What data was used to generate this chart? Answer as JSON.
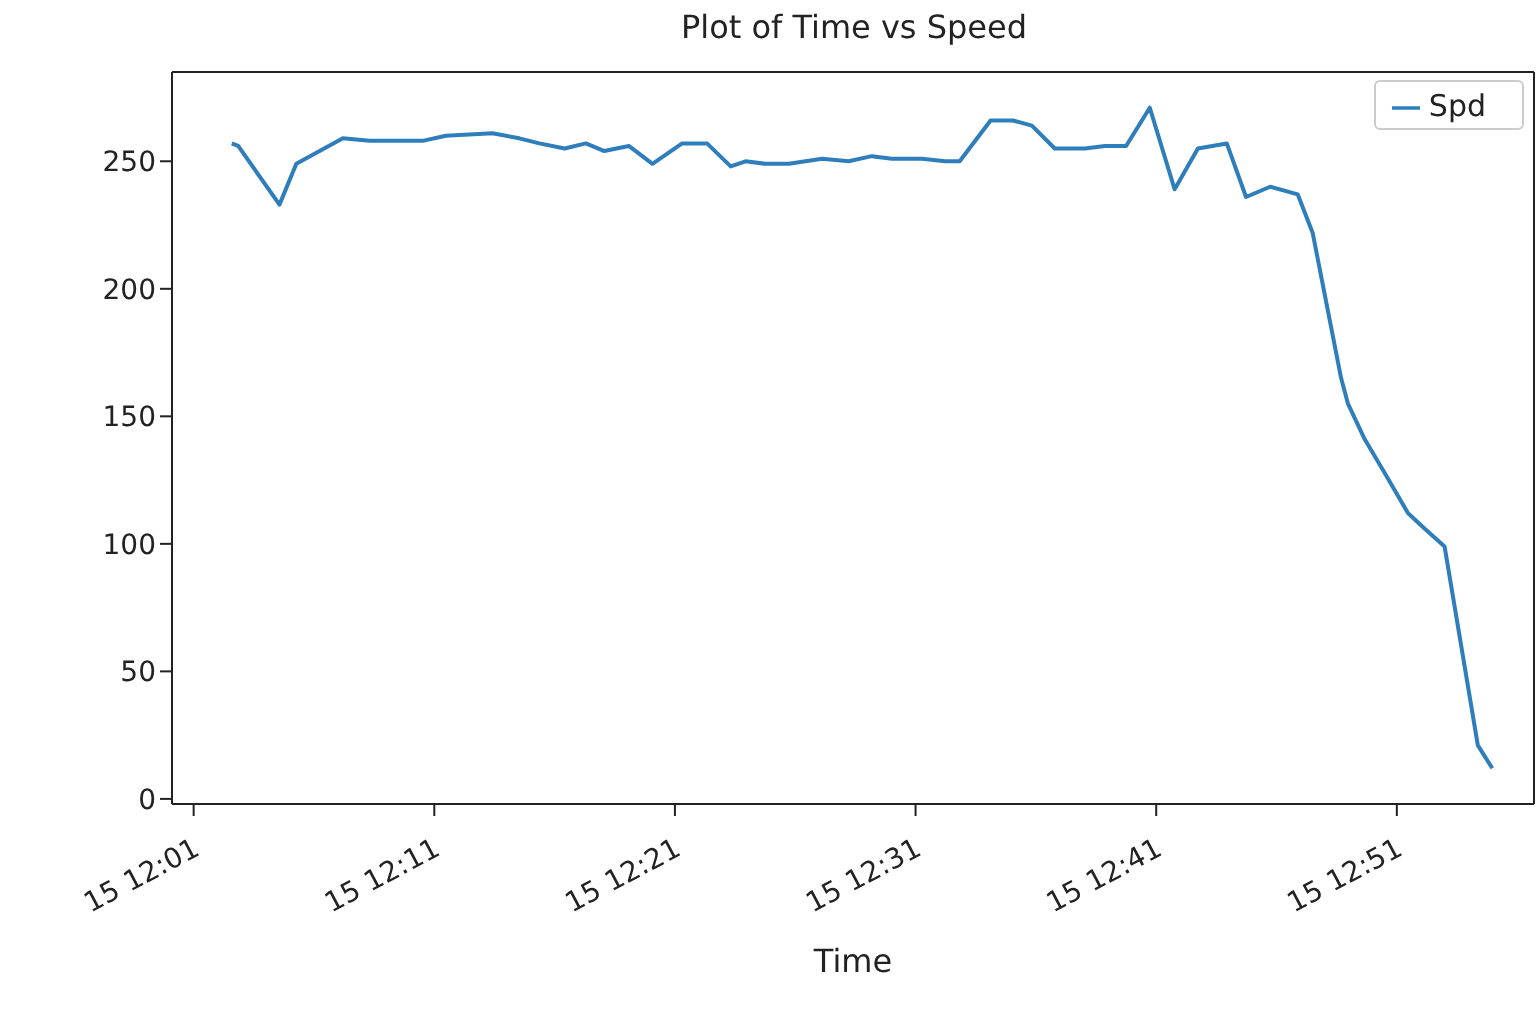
{
  "chart_data": {
    "type": "line",
    "title": "Plot of Time vs Speed",
    "xlabel": "Time",
    "x": [
      "--01-15T12:02:35",
      "--01-15T12:02:51",
      "--01-15T12:04:34",
      "--01-15T12:05:16",
      "--01-15T12:07:12",
      "--01-15T12:08:18",
      "--01-15T12:09:16",
      "--01-15T12:10:31",
      "--01-15T12:11:29",
      "--01-15T12:13:25",
      "--01-15T12:14:32",
      "--01-15T12:15:22",
      "--01-15T12:16:25",
      "--01-15T12:17:18",
      "--01-15T12:18:04",
      "--01-15T12:19:05",
      "--01-15T12:20:04",
      "--01-15T12:21:18",
      "--01-15T12:22:20",
      "--01-15T12:23:19",
      "--01-15T12:23:56",
      "--01-15T12:24:46",
      "--01-15T12:25:44",
      "--01-15T12:27:07",
      "--01-15T12:28:13",
      "--01-15T12:29:11",
      "--01-15T12:30:01",
      "--01-15T12:31:16",
      "--01-15T12:32:14",
      "--01-15T12:32:50",
      "--01-15T12:34:07",
      "--01-15T12:35:03",
      "--01-15T12:35:50",
      "--01-15T12:36:47",
      "--01-15T12:38:02",
      "--01-15T12:38:52",
      "--01-15T12:39:45",
      "--01-15T12:40:44",
      "--01-15T12:41:46",
      "--01-15T12:42:44",
      "--01-15T12:43:56",
      "--01-15T12:44:44",
      "--01-15T12:45:44",
      "--01-15T12:46:53",
      "--01-15T12:47:30",
      "--01-15T12:48:41",
      "--01-15T12:48:58",
      "--01-15T12:49:40",
      "--01-15T12:50:29",
      "--01-15T12:51:28",
      "--01-15T12:52:09",
      "--01-15T12:52:59",
      "--01-15T12:54:22",
      "--01-15T12:54:58"
    ],
    "series": [
      {
        "name": "Spd",
        "color": "#2f7ebc",
        "values": [
          257,
          256,
          233,
          249,
          259,
          258,
          258,
          258,
          260,
          261,
          259,
          257,
          255,
          257,
          254,
          256,
          249,
          257,
          257,
          248,
          250,
          249,
          249,
          251,
          250,
          252,
          251,
          251,
          250,
          250,
          266,
          266,
          264,
          255,
          255,
          256,
          256,
          271,
          239,
          255,
          257,
          236,
          240,
          237,
          222,
          165,
          155,
          141,
          128,
          112,
          106,
          99,
          21,
          12
        ]
      }
    ],
    "xlim": [
      "--01-15T12:00:06",
      "--01-15T12:56:42"
    ],
    "xticks": [
      {
        "value": "--01-15T12:01",
        "label": "15 12:01"
      },
      {
        "value": "--01-15T12:11",
        "label": "15 12:11"
      },
      {
        "value": "--01-15T12:21",
        "label": "15 12:21"
      },
      {
        "value": "--01-15T12:31",
        "label": "15 12:31"
      },
      {
        "value": "--01-15T12:41",
        "label": "15 12:41"
      },
      {
        "value": "--01-15T12:51",
        "label": "15 12:51"
      }
    ],
    "ylim": [
      -2,
      285
    ],
    "yticks": [
      0,
      50,
      100,
      150,
      200,
      250
    ],
    "legend": "top right",
    "grid": false,
    "marker": "none",
    "line_style": "solid"
  }
}
